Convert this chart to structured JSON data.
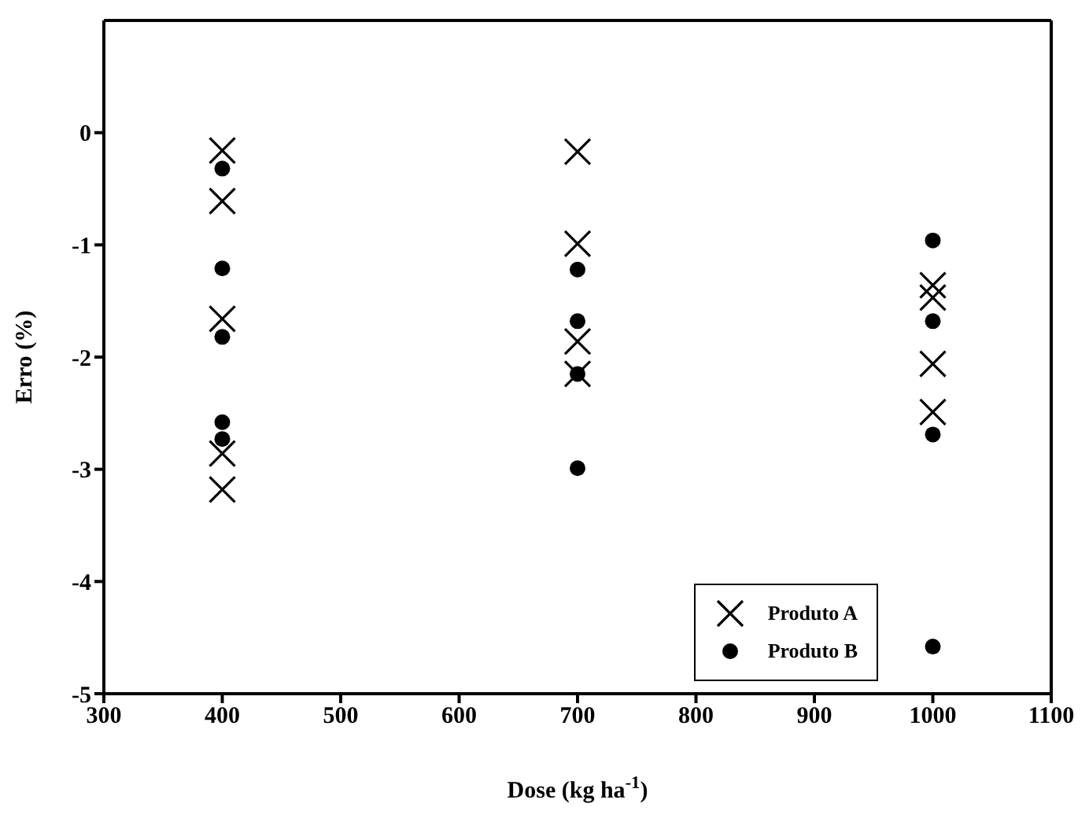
{
  "chart_data": {
    "type": "scatter",
    "xlabel": "Dose (kg ha$^{-1}$)",
    "ylabel": "Erro (%)",
    "xlim": [
      300,
      1100
    ],
    "xticks": [
      300,
      400,
      500,
      600,
      700,
      800,
      900,
      1000,
      1100
    ],
    "ylim": [
      -5,
      1
    ],
    "yticks": [
      -5,
      -4,
      -3,
      -2,
      -1,
      0
    ],
    "grid": false,
    "legend": "bottom right",
    "series": [
      {
        "name": "Produto A",
        "color": "#000000",
        "marker": "cross",
        "x": [
          400,
          400,
          400,
          400,
          400,
          700,
          700,
          700,
          700,
          1000,
          1000,
          1000,
          1000
        ],
        "values": [
          -0.16,
          -0.61,
          -1.66,
          -2.86,
          -3.18,
          -0.17,
          -0.99,
          -1.86,
          -2.15,
          -1.36,
          -1.47,
          -2.06,
          -2.49
        ]
      },
      {
        "name": "Produto B",
        "color": "#000000",
        "marker": "circle",
        "x": [
          400,
          400,
          400,
          400,
          400,
          700,
          700,
          700,
          700,
          1000,
          1000,
          1000,
          1000
        ],
        "values": [
          -0.32,
          -1.21,
          -1.82,
          -2.58,
          -2.73,
          -1.22,
          -1.68,
          -2.15,
          -2.99,
          -0.96,
          -1.68,
          -2.69,
          -4.58
        ]
      }
    ]
  }
}
